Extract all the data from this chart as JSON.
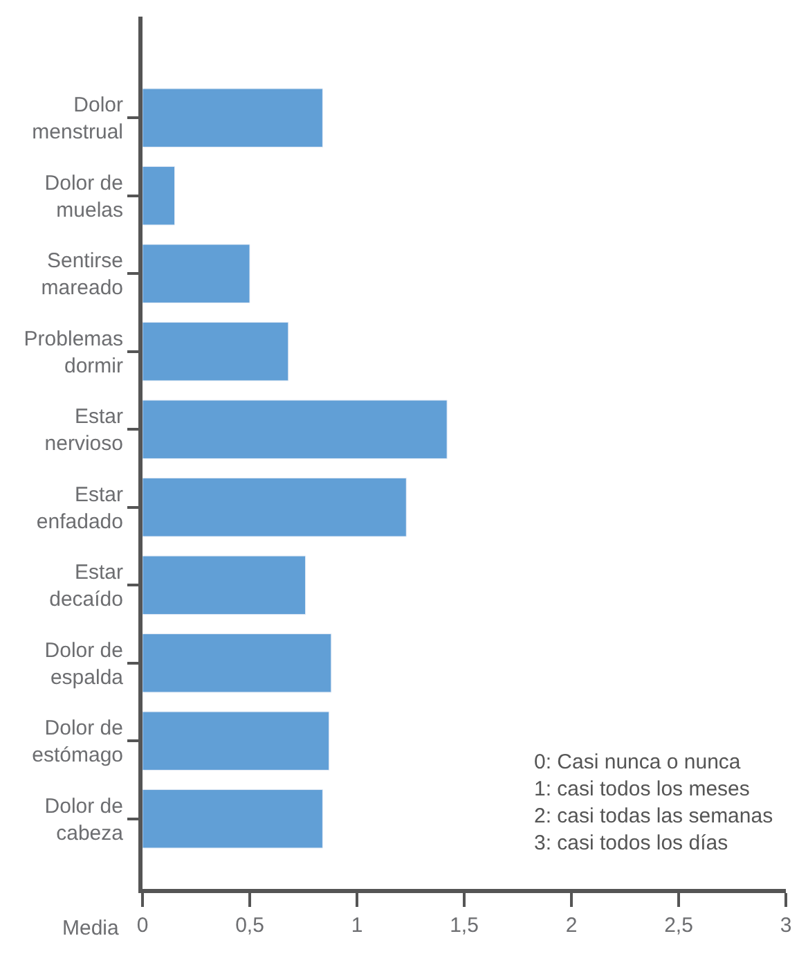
{
  "chart_data": {
    "type": "bar",
    "orientation": "horizontal",
    "categories": [
      "Dolor\nmenstrual",
      "Dolor de\nmuelas",
      "Sentirse\nmareado",
      "Problemas\ndormir",
      "Estar\nnervioso",
      "Estar\nenfadado",
      "Estar\ndecaído",
      "Dolor de\nespalda",
      "Dolor de\nestómago",
      "Dolor de\ncabeza"
    ],
    "values": [
      0.84,
      0.15,
      0.5,
      0.68,
      1.42,
      1.23,
      0.76,
      0.88,
      0.87,
      0.84
    ],
    "color": "#619fd6",
    "xlabel": "Media",
    "xlim": [
      0,
      3
    ],
    "xticks": [
      0,
      {
        "value": 0.5,
        "label": "0,5"
      },
      1,
      {
        "value": 1.5,
        "label": "1,5"
      },
      2,
      {
        "value": 2.5,
        "label": "2,5"
      },
      3
    ],
    "annotations": [
      "0: Casi nunca o nunca\n1: casi todos los meses\n2: casi todas las semanas\n3: casi todos los días"
    ]
  }
}
